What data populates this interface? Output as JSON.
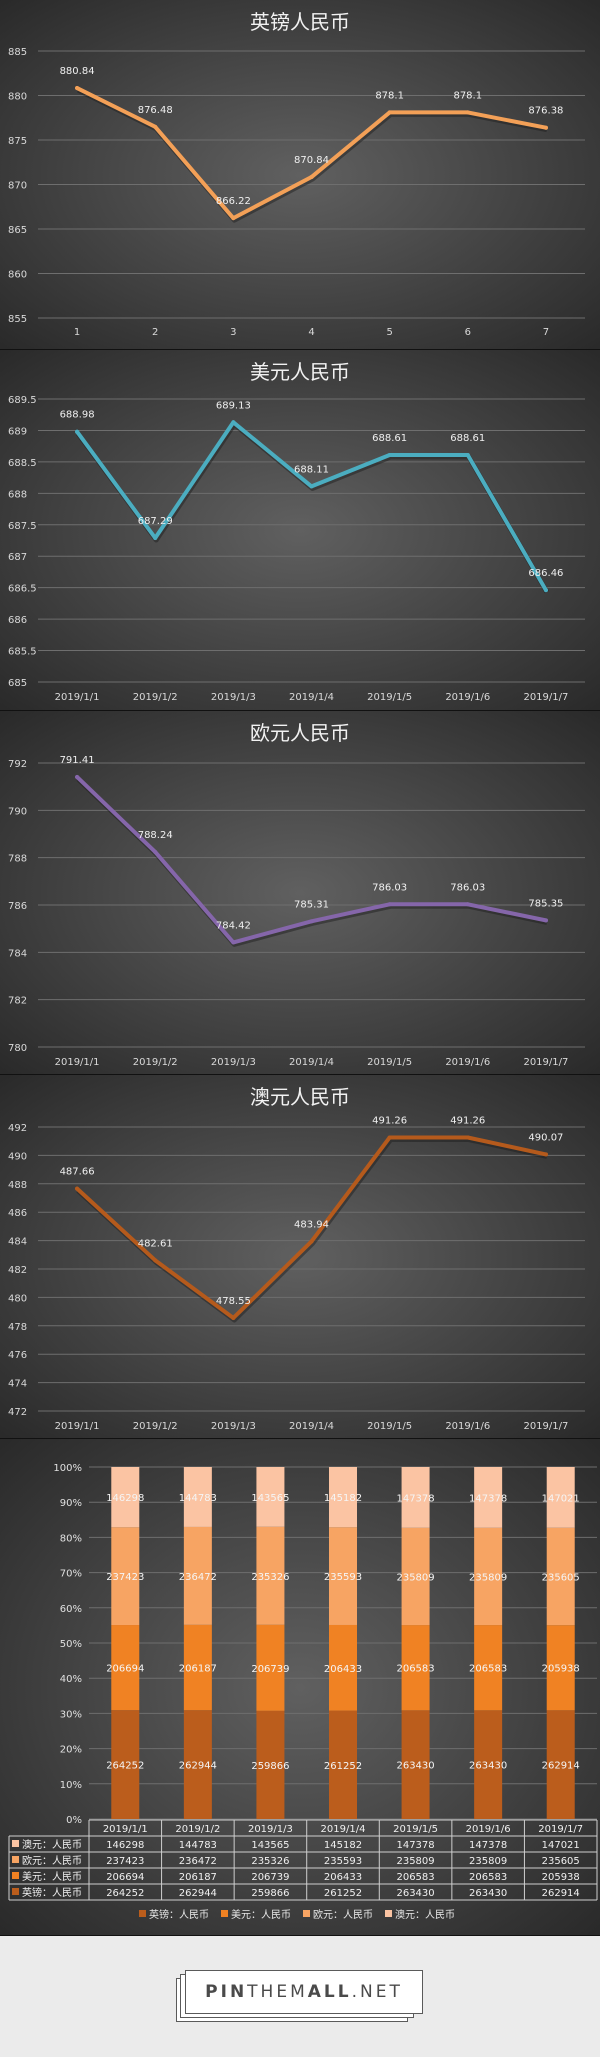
{
  "chart_data": [
    {
      "type": "line",
      "title": "英镑人民币",
      "categories": [
        "1",
        "2",
        "3",
        "4",
        "5",
        "6",
        "7"
      ],
      "values": [
        880.84,
        876.48,
        866.22,
        870.84,
        878.1,
        878.1,
        876.38
      ],
      "data_labels": [
        "880.84",
        "876.48",
        "866.22",
        "870.84",
        "878.1",
        "878.1",
        "876.38"
      ],
      "ylim": [
        855,
        885
      ],
      "yticks": [
        855,
        860,
        865,
        870,
        875,
        880,
        885
      ],
      "ytick_labels": [
        "855",
        "860",
        "865",
        "870",
        "875",
        "880",
        "885"
      ],
      "line_color": "#f3a057",
      "grid": true
    },
    {
      "type": "line",
      "title": "美元人民币",
      "categories": [
        "2019/1/1",
        "2019/1/2",
        "2019/1/3",
        "2019/1/4",
        "2019/1/5",
        "2019/1/6",
        "2019/1/7"
      ],
      "values": [
        688.98,
        687.29,
        689.13,
        688.11,
        688.61,
        688.61,
        686.46
      ],
      "data_labels": [
        "688.98",
        "687.29",
        "689.13",
        "688.11",
        "688.61",
        "688.61",
        "686.46"
      ],
      "ylim": [
        685,
        689.5
      ],
      "yticks": [
        685,
        685.5,
        686,
        686.5,
        687,
        687.5,
        688,
        688.5,
        689,
        689.5
      ],
      "ytick_labels": [
        "685",
        "685.5",
        "686",
        "686.5",
        "687",
        "687.5",
        "688",
        "688.5",
        "689",
        "689.5"
      ],
      "line_color": "#4badc0",
      "grid": true
    },
    {
      "type": "line",
      "title": "欧元人民币",
      "categories": [
        "2019/1/1",
        "2019/1/2",
        "2019/1/3",
        "2019/1/4",
        "2019/1/5",
        "2019/1/6",
        "2019/1/7"
      ],
      "values": [
        791.41,
        788.24,
        784.42,
        785.31,
        786.03,
        786.03,
        785.35
      ],
      "data_labels": [
        "791.41",
        "788.24",
        "784.42",
        "785.31",
        "786.03",
        "786.03",
        "785.35"
      ],
      "ylim": [
        780,
        792
      ],
      "yticks": [
        780,
        782,
        784,
        786,
        788,
        790,
        792
      ],
      "ytick_labels": [
        "780",
        "782",
        "784",
        "786",
        "788",
        "790",
        "792"
      ],
      "line_color": "#8566aa",
      "grid": true
    },
    {
      "type": "line",
      "title": "澳元人民币",
      "categories": [
        "2019/1/1",
        "2019/1/2",
        "2019/1/3",
        "2019/1/4",
        "2019/1/5",
        "2019/1/6",
        "2019/1/7"
      ],
      "values": [
        487.66,
        482.61,
        478.55,
        483.94,
        491.26,
        491.26,
        490.07
      ],
      "data_labels": [
        "487.66",
        "482.61",
        "478.55",
        "483.94",
        "491.26",
        "491.26",
        "490.07"
      ],
      "ylim": [
        472,
        492
      ],
      "yticks": [
        472,
        474,
        476,
        478,
        480,
        482,
        484,
        486,
        488,
        490,
        492
      ],
      "ytick_labels": [
        "472",
        "474",
        "476",
        "478",
        "480",
        "482",
        "484",
        "486",
        "488",
        "490",
        "492"
      ],
      "line_color": "#b55a1c",
      "grid": true
    },
    {
      "type": "bar",
      "stacked": "percent",
      "categories": [
        "2019/1/1",
        "2019/1/2",
        "2019/1/3",
        "2019/1/4",
        "2019/1/5",
        "2019/1/6",
        "2019/1/7"
      ],
      "series": [
        {
          "name": "英镑：人民币",
          "values": [
            264252,
            262944,
            259866,
            261252,
            263430,
            263430,
            262914
          ],
          "color": "#bb5d1c"
        },
        {
          "name": "美元：人民币",
          "values": [
            206694,
            206187,
            206739,
            206433,
            206583,
            206583,
            205938
          ],
          "color": "#f08223"
        },
        {
          "name": "欧元：人民币",
          "values": [
            237423,
            236472,
            235326,
            235593,
            235809,
            235809,
            235605
          ],
          "color": "#f7a463"
        },
        {
          "name": "澳元：人民币",
          "values": [
            146298,
            144783,
            143565,
            145182,
            147378,
            147378,
            147021
          ],
          "color": "#fbc4a3"
        }
      ],
      "table_rows": [
        {
          "name": "澳元：人民币",
          "values": [
            "146298",
            "144783",
            "143565",
            "145182",
            "147378",
            "147378",
            "147021"
          ],
          "color": "#fbc4a3"
        },
        {
          "name": "欧元：人民币",
          "values": [
            "237423",
            "236472",
            "235326",
            "235593",
            "235809",
            "235809",
            "235605"
          ],
          "color": "#f7a463"
        },
        {
          "name": "美元：人民币",
          "values": [
            "206694",
            "206187",
            "206739",
            "206433",
            "206583",
            "206583",
            "205938"
          ],
          "color": "#f08223"
        },
        {
          "name": "英镑：人民币",
          "values": [
            "264252",
            "262944",
            "259866",
            "261252",
            "263430",
            "263430",
            "262914"
          ],
          "color": "#bb5d1c"
        }
      ],
      "ytick_labels": [
        "0%",
        "10%",
        "20%",
        "30%",
        "40%",
        "50%",
        "60%",
        "70%",
        "80%",
        "90%",
        "100%"
      ],
      "legend_position": "bottom",
      "grid": true
    }
  ],
  "watermark": {
    "part1": "PIN",
    "part2": "THEM",
    "part3": "ALL",
    "part4": ".NET"
  }
}
